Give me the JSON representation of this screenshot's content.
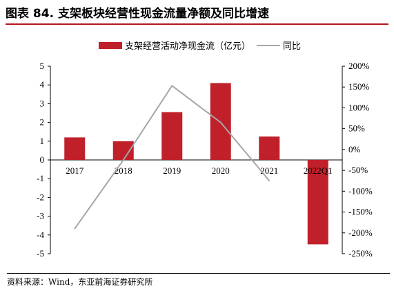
{
  "title": "图表 84. 支架板块经营性现金流量净额及同比增速",
  "source": "资料来源：Wind，东亚前海证券研究所",
  "colors": {
    "bar": "#c0202a",
    "line": "#a6a6a6",
    "title_rule": "#b4141e"
  },
  "chart_data": {
    "type": "bar",
    "categories": [
      "2017",
      "2018",
      "2019",
      "2020",
      "2021",
      "2022Q1"
    ],
    "series": [
      {
        "name": "支架经营活动净现金流（亿元）",
        "type": "bar",
        "axis": "left",
        "values": [
          1.2,
          1.0,
          2.55,
          4.1,
          1.25,
          -4.5
        ]
      },
      {
        "name": "同比",
        "type": "line",
        "axis": "right",
        "values": [
          -190,
          -25,
          153,
          65,
          -75,
          null
        ]
      }
    ],
    "ylim_left": [
      -5,
      5
    ],
    "yticks_left": [
      "5",
      "4",
      "3",
      "2",
      "1",
      "0",
      "-1",
      "-2",
      "-3",
      "-4",
      "-5"
    ],
    "ylim_right": [
      -250,
      200
    ],
    "yticks_right": [
      "200%",
      "150%",
      "100%",
      "50%",
      "0%",
      "-50%",
      "-100%",
      "-150%",
      "-200%",
      "-250%"
    ],
    "legend_position": "top"
  }
}
